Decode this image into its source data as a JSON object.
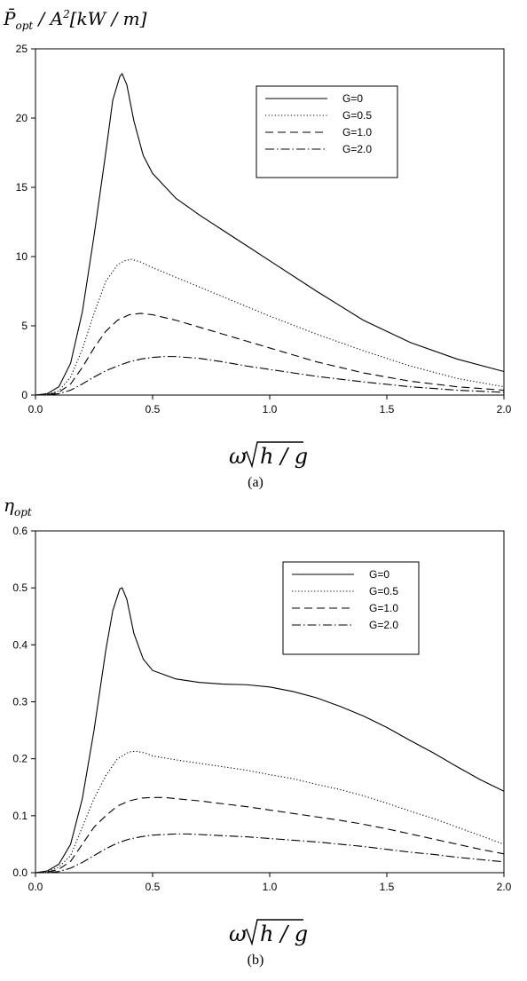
{
  "chart_data": [
    {
      "type": "line",
      "panel_label": "(a)",
      "ylabel": "P̄opt / A²[kW / m]",
      "ylabel_parts": {
        "main": "P̄",
        "sub": "opt",
        "rest": " / A",
        "sup": "2",
        "tail": "[kW / m]"
      },
      "xlabel": "ω√(h/g)",
      "xlim": [
        0,
        2.0
      ],
      "ylim": [
        0,
        25
      ],
      "xticks": [
        0.0,
        0.5,
        1.0,
        1.5,
        2.0
      ],
      "xtick_labels": [
        "0.0",
        "0.5",
        "1.0",
        "1.5",
        "2.0"
      ],
      "yticks": [
        0,
        5,
        10,
        15,
        20,
        25
      ],
      "ytick_labels": [
        "0",
        "5",
        "10",
        "15",
        "20",
        "25"
      ],
      "grid": false,
      "legend_position": "top-right",
      "series": [
        {
          "name": "G=0",
          "dash": "solid",
          "x": [
            0,
            0.05,
            0.1,
            0.15,
            0.2,
            0.25,
            0.3,
            0.33,
            0.36,
            0.37,
            0.39,
            0.42,
            0.46,
            0.5,
            0.6,
            0.7,
            0.8,
            0.9,
            1.0,
            1.2,
            1.4,
            1.6,
            1.8,
            2.0
          ],
          "y": [
            0,
            0.1,
            0.6,
            2.3,
            6.0,
            11.5,
            17.5,
            21.3,
            23.0,
            23.2,
            22.4,
            19.8,
            17.3,
            16.0,
            14.2,
            13.0,
            11.9,
            10.8,
            9.7,
            7.5,
            5.4,
            3.8,
            2.6,
            1.7
          ]
        },
        {
          "name": "G=0.5",
          "dash": "dotted",
          "x": [
            0,
            0.05,
            0.1,
            0.15,
            0.2,
            0.25,
            0.3,
            0.35,
            0.38,
            0.41,
            0.45,
            0.5,
            0.6,
            0.7,
            0.8,
            0.9,
            1.0,
            1.2,
            1.4,
            1.6,
            1.8,
            2.0
          ],
          "y": [
            0,
            0.05,
            0.3,
            1.3,
            3.3,
            5.9,
            8.2,
            9.4,
            9.7,
            9.8,
            9.6,
            9.2,
            8.5,
            7.8,
            7.1,
            6.4,
            5.7,
            4.4,
            3.2,
            2.1,
            1.2,
            0.6
          ]
        },
        {
          "name": "G=1.0",
          "dash": "dashed",
          "x": [
            0,
            0.05,
            0.1,
            0.15,
            0.2,
            0.25,
            0.3,
            0.35,
            0.4,
            0.45,
            0.5,
            0.6,
            0.7,
            0.8,
            0.9,
            1.0,
            1.2,
            1.4,
            1.6,
            1.8,
            2.0
          ],
          "y": [
            0,
            0.03,
            0.2,
            0.8,
            2.0,
            3.4,
            4.6,
            5.4,
            5.8,
            5.9,
            5.8,
            5.4,
            4.9,
            4.4,
            3.9,
            3.4,
            2.4,
            1.6,
            1.0,
            0.6,
            0.35
          ]
        },
        {
          "name": "G=2.0",
          "dash": "dashdot",
          "x": [
            0,
            0.05,
            0.1,
            0.15,
            0.2,
            0.25,
            0.3,
            0.35,
            0.4,
            0.45,
            0.5,
            0.55,
            0.6,
            0.7,
            0.8,
            0.9,
            1.0,
            1.2,
            1.4,
            1.6,
            1.8,
            2.0
          ],
          "y": [
            0,
            0.02,
            0.1,
            0.35,
            0.8,
            1.3,
            1.75,
            2.1,
            2.4,
            2.6,
            2.72,
            2.78,
            2.78,
            2.65,
            2.4,
            2.1,
            1.85,
            1.35,
            0.95,
            0.6,
            0.35,
            0.2
          ]
        }
      ]
    },
    {
      "type": "line",
      "panel_label": "(b)",
      "ylabel": "ηopt",
      "ylabel_parts": {
        "main": "η",
        "sub": "opt",
        "rest": "",
        "sup": "",
        "tail": ""
      },
      "xlabel": "ω√(h/g)",
      "xlim": [
        0,
        2.0
      ],
      "ylim": [
        0,
        0.6
      ],
      "xticks": [
        0.0,
        0.5,
        1.0,
        1.5,
        2.0
      ],
      "xtick_labels": [
        "0.0",
        "0.5",
        "1.0",
        "1.5",
        "2.0"
      ],
      "yticks": [
        0,
        0.1,
        0.2,
        0.3,
        0.4,
        0.5,
        0.6
      ],
      "ytick_labels": [
        "0.0",
        "0.1",
        "0.2",
        "0.3",
        "0.4",
        "0.5",
        "0.6"
      ],
      "grid": false,
      "legend_position": "top-right",
      "series": [
        {
          "name": "G=0",
          "dash": "solid",
          "x": [
            0,
            0.05,
            0.1,
            0.15,
            0.2,
            0.25,
            0.3,
            0.33,
            0.36,
            0.37,
            0.39,
            0.42,
            0.46,
            0.5,
            0.6,
            0.7,
            0.8,
            0.9,
            1.0,
            1.1,
            1.2,
            1.3,
            1.4,
            1.5,
            1.6,
            1.7,
            1.8,
            1.9,
            2.0
          ],
          "y": [
            0,
            0.003,
            0.015,
            0.05,
            0.13,
            0.25,
            0.39,
            0.46,
            0.498,
            0.5,
            0.48,
            0.42,
            0.375,
            0.355,
            0.34,
            0.334,
            0.331,
            0.33,
            0.326,
            0.318,
            0.307,
            0.292,
            0.275,
            0.255,
            0.232,
            0.21,
            0.186,
            0.163,
            0.143
          ]
        },
        {
          "name": "G=0.5",
          "dash": "dotted",
          "x": [
            0,
            0.05,
            0.1,
            0.15,
            0.2,
            0.25,
            0.3,
            0.35,
            0.4,
            0.43,
            0.47,
            0.5,
            0.6,
            0.7,
            0.8,
            0.9,
            1.0,
            1.1,
            1.2,
            1.3,
            1.4,
            1.5,
            1.6,
            1.7,
            1.8,
            1.9,
            2.0
          ],
          "y": [
            0,
            0.002,
            0.01,
            0.03,
            0.08,
            0.13,
            0.17,
            0.2,
            0.212,
            0.213,
            0.21,
            0.205,
            0.198,
            0.192,
            0.186,
            0.18,
            0.172,
            0.165,
            0.155,
            0.146,
            0.135,
            0.122,
            0.108,
            0.095,
            0.08,
            0.065,
            0.05
          ]
        },
        {
          "name": "G=1.0",
          "dash": "dashed",
          "x": [
            0,
            0.05,
            0.1,
            0.15,
            0.2,
            0.25,
            0.3,
            0.35,
            0.4,
            0.45,
            0.5,
            0.55,
            0.6,
            0.7,
            0.8,
            0.9,
            1.0,
            1.1,
            1.2,
            1.3,
            1.4,
            1.5,
            1.6,
            1.7,
            1.8,
            1.9,
            2.0
          ],
          "y": [
            0,
            0.001,
            0.006,
            0.02,
            0.05,
            0.08,
            0.1,
            0.117,
            0.126,
            0.131,
            0.132,
            0.132,
            0.13,
            0.126,
            0.121,
            0.116,
            0.11,
            0.104,
            0.098,
            0.092,
            0.085,
            0.077,
            0.068,
            0.059,
            0.05,
            0.041,
            0.033
          ]
        },
        {
          "name": "G=2.0",
          "dash": "dashdot",
          "x": [
            0,
            0.05,
            0.1,
            0.15,
            0.2,
            0.25,
            0.3,
            0.35,
            0.4,
            0.45,
            0.5,
            0.55,
            0.6,
            0.65,
            0.7,
            0.8,
            0.9,
            1.0,
            1.1,
            1.2,
            1.3,
            1.4,
            1.5,
            1.6,
            1.7,
            1.8,
            1.9,
            2.0
          ],
          "y": [
            0,
            0.0005,
            0.002,
            0.008,
            0.018,
            0.03,
            0.042,
            0.052,
            0.059,
            0.063,
            0.066,
            0.067,
            0.068,
            0.068,
            0.067,
            0.065,
            0.063,
            0.06,
            0.057,
            0.054,
            0.05,
            0.046,
            0.041,
            0.036,
            0.032,
            0.027,
            0.023,
            0.019
          ]
        }
      ]
    }
  ]
}
